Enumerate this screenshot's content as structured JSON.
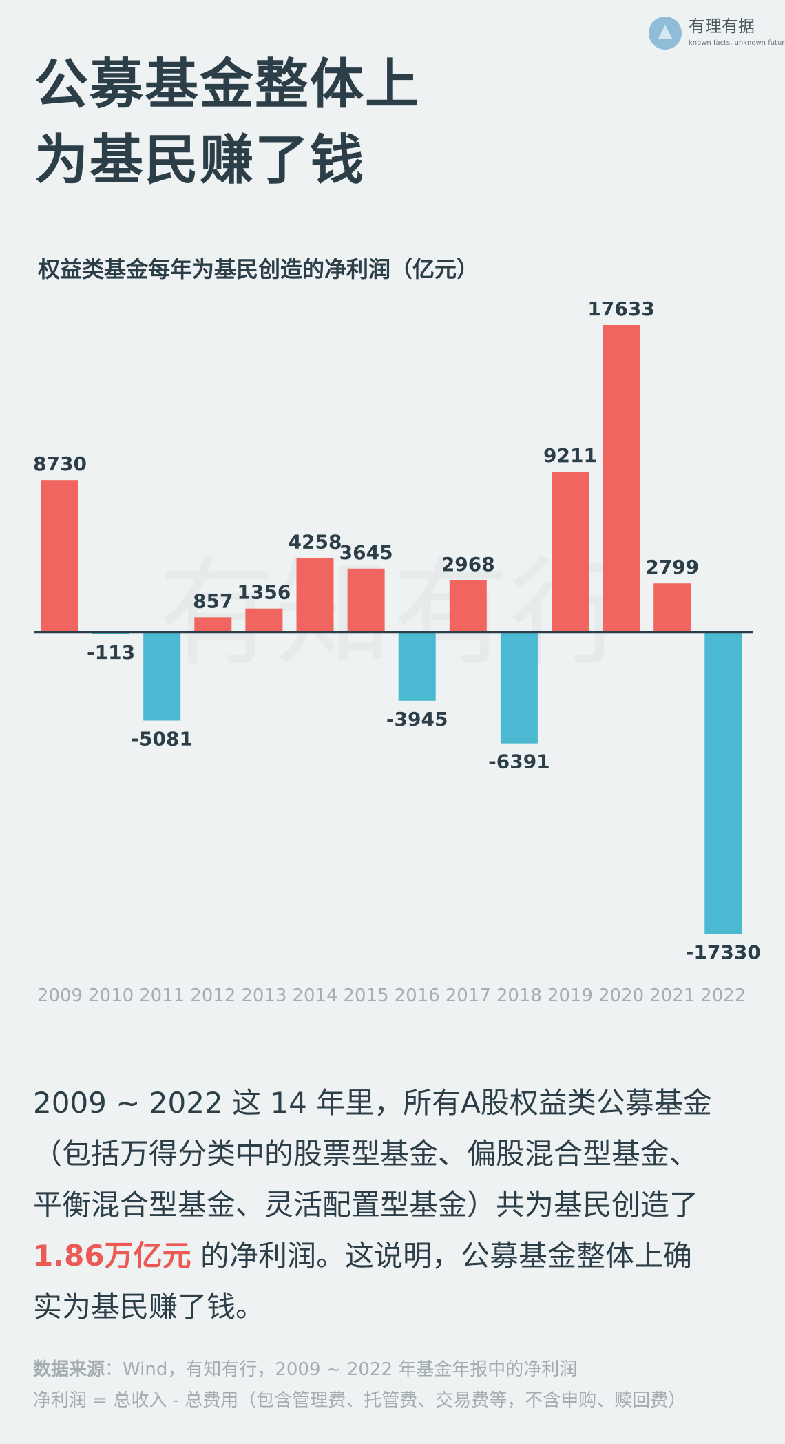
{
  "logo": {
    "name": "有理有据",
    "tagline": "known facts, unknown future"
  },
  "header": {
    "title_lines": [
      "公募基金整体上",
      "为基民赚了钱"
    ]
  },
  "chart_data": {
    "type": "bar",
    "title": "权益类基金每年为基民创造的净利润（亿元）",
    "categories": [
      "2009",
      "2010",
      "2011",
      "2012",
      "2013",
      "2014",
      "2015",
      "2016",
      "2017",
      "2018",
      "2019",
      "2020",
      "2021",
      "2022"
    ],
    "values": [
      8730,
      -113,
      -5081,
      857,
      1356,
      4258,
      3645,
      -3945,
      2968,
      -6391,
      9211,
      17633,
      2799,
      -17330
    ],
    "positive_color": "#f0655f",
    "negative_color": "#4cb9d2",
    "watermark": "有知有行"
  },
  "body": {
    "lines": [
      "2009 ~ 2022 这 14 年里，所有A股权益类公募基金",
      "（包括万得分类中的股票型基金、偏股混合型基金、",
      "平衡混合型基金、灵活配置型基金）共为基民创造了",
      " 的净利润。这说明，公募基金整体上确",
      "实为基民赚了钱。"
    ],
    "highlight": "1.86万亿元"
  },
  "source": {
    "label": "数据来源",
    "text": "：Wind，有知有行，2009 ~ 2022 年基金年报中的净利润",
    "note": "净利润 = 总收入 - 总费用（包含管理费、托管费、交易费等，不含申购、赎回费）"
  }
}
